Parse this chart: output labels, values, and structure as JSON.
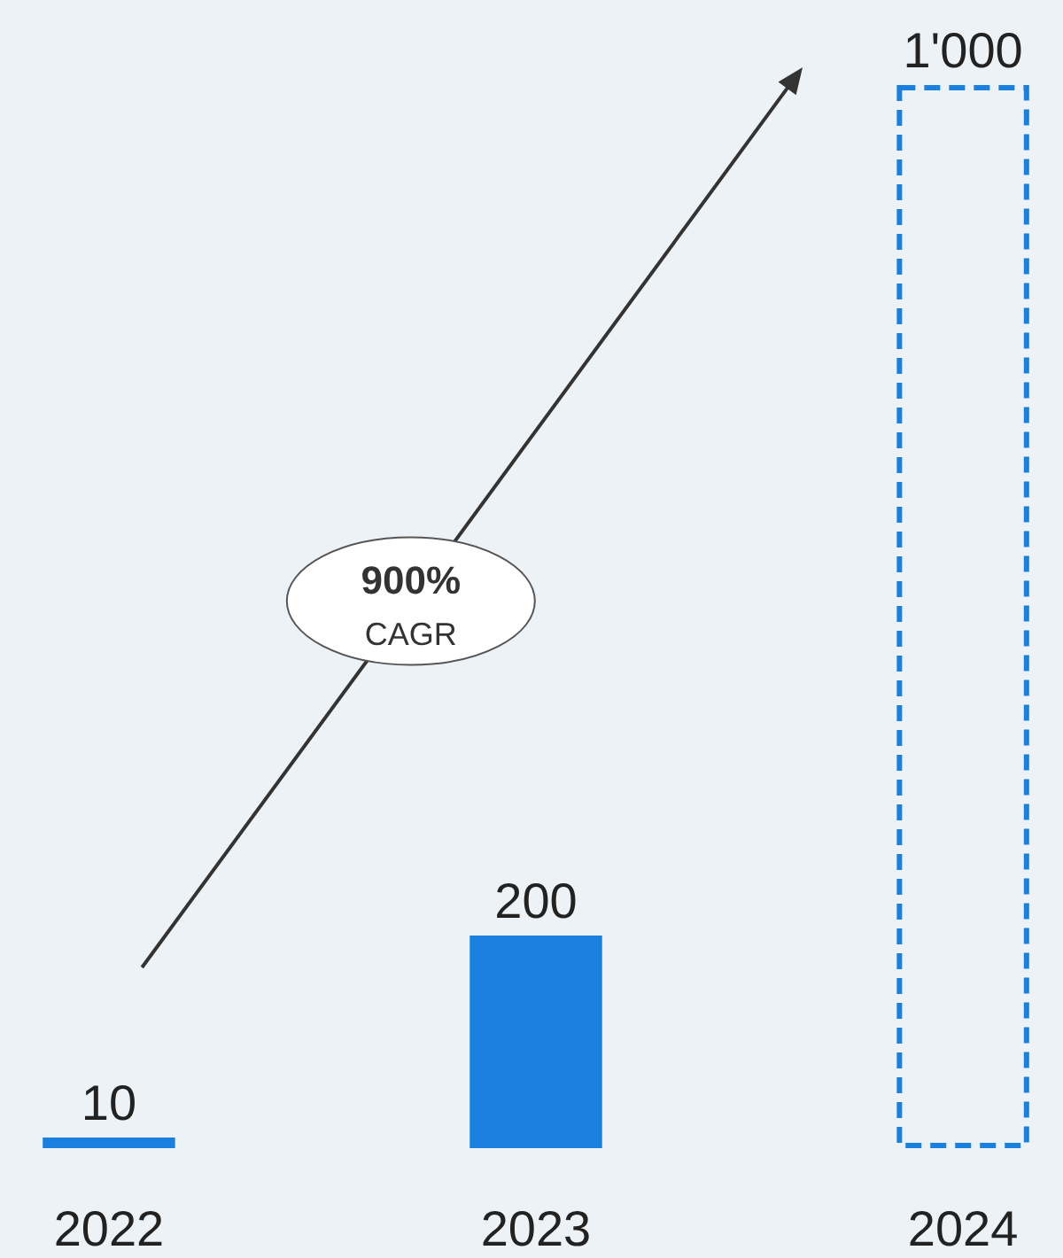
{
  "chart_data": {
    "type": "bar",
    "categories": [
      "2022",
      "2023",
      "2024"
    ],
    "series": [
      {
        "color": "#1a80e0",
        "values": [
          10,
          200,
          null
        ],
        "value_labels": [
          "10",
          "200",
          null
        ]
      },
      {
        "color": "#1a80e0",
        "line_style": "dashed",
        "values": [
          null,
          null,
          1000
        ],
        "value_labels": [
          null,
          null,
          "1'000"
        ]
      }
    ],
    "ylim": [
      0,
      1000
    ],
    "tick_labels": "x",
    "annotations": [
      "900%",
      "CAGR"
    ]
  }
}
